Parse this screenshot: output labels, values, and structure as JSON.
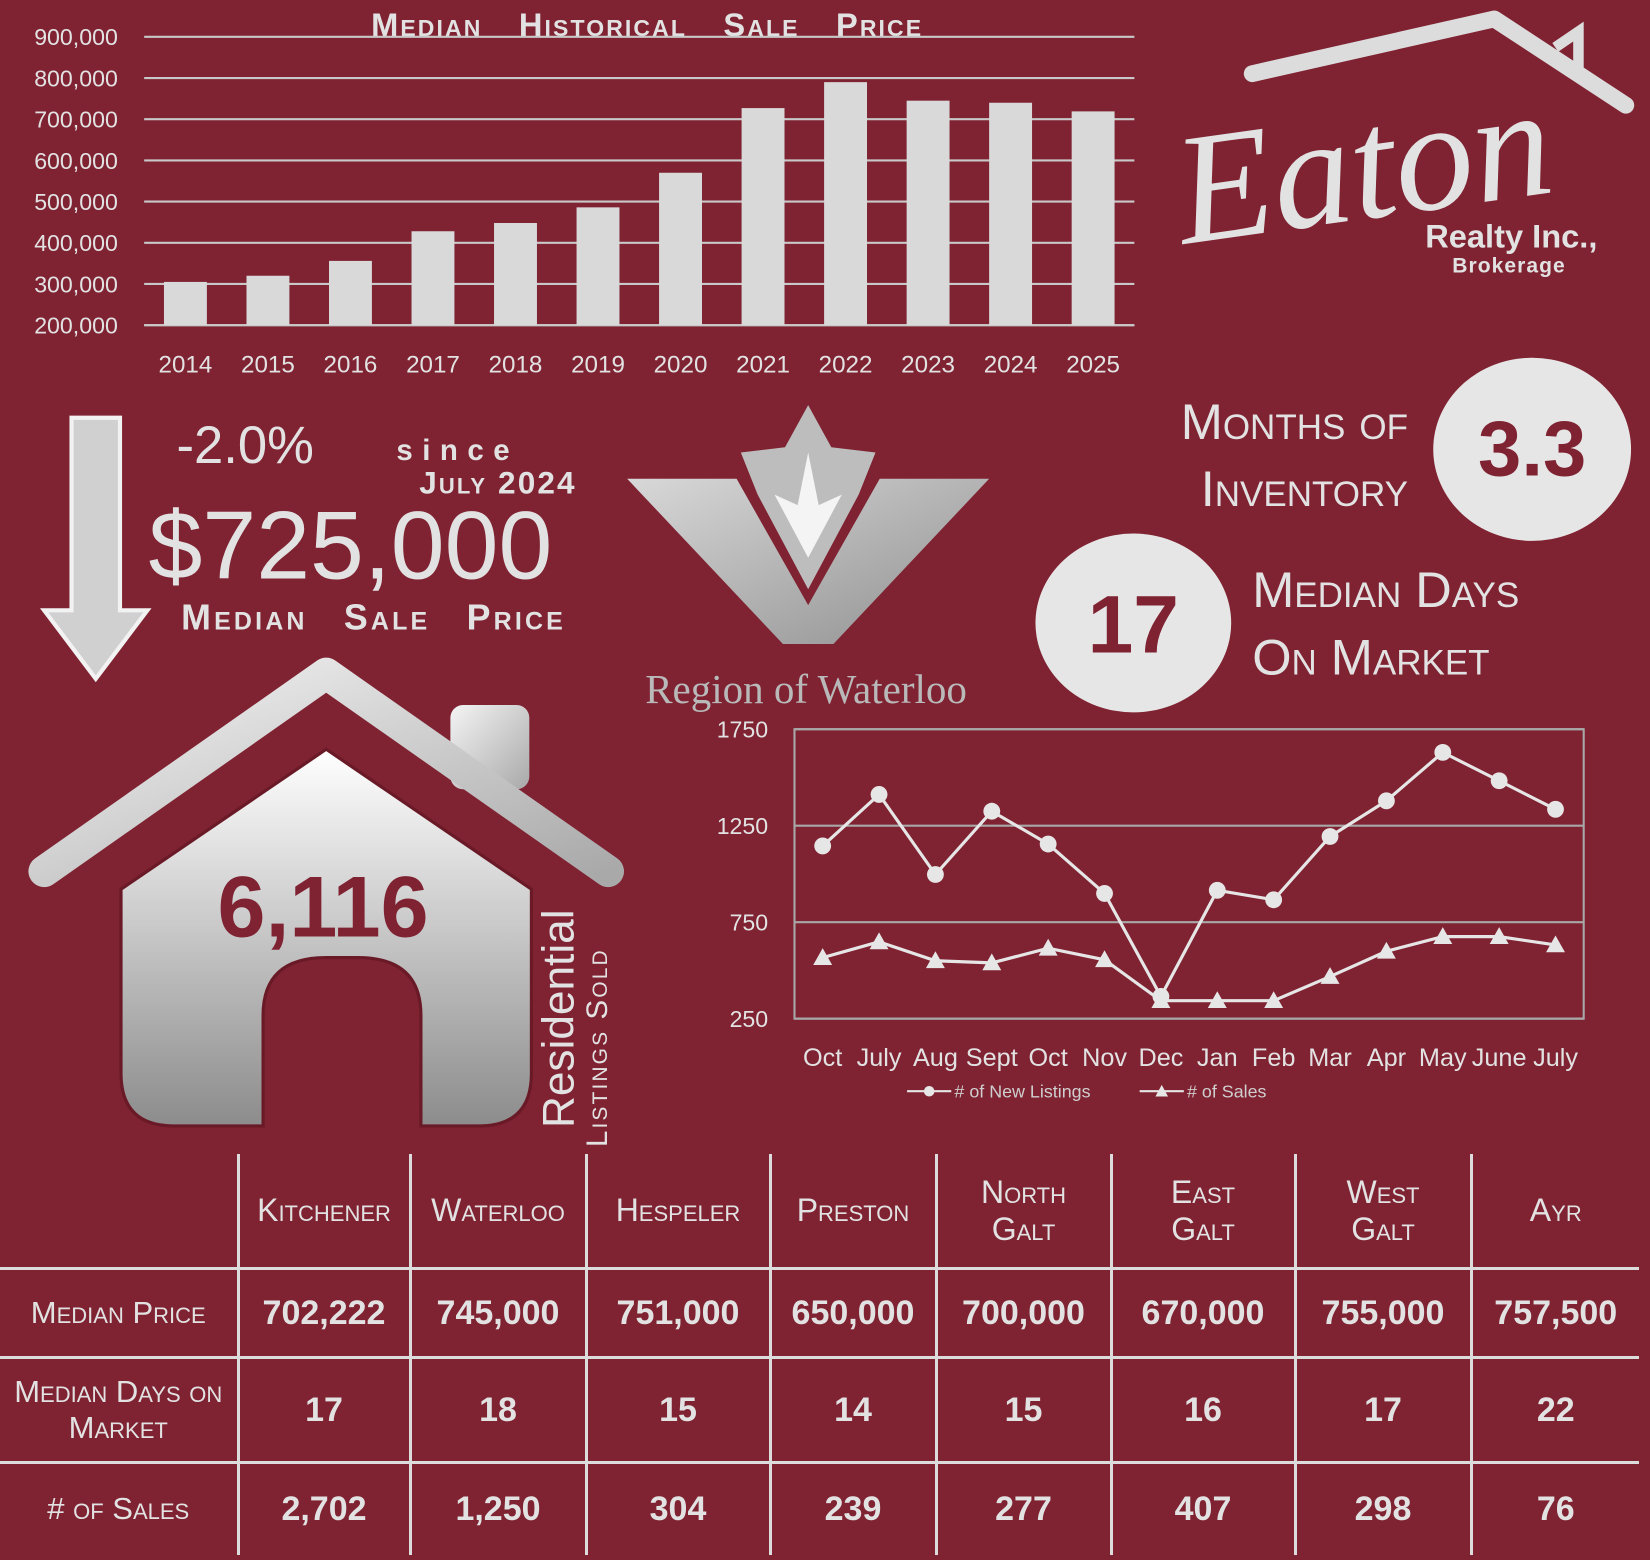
{
  "chart_data": [
    {
      "type": "bar",
      "title": "Median Historical Sale Price",
      "color": "#d9d9d9",
      "grid": true,
      "categories": [
        "2014",
        "2015",
        "2016",
        "2017",
        "2018",
        "2019",
        "2020",
        "2021",
        "2022",
        "2023",
        "2024",
        "2025"
      ],
      "values": [
        305000,
        320000,
        356000,
        428000,
        448000,
        486000,
        570000,
        727000,
        790000,
        745000,
        740000,
        719000
      ],
      "ylim": [
        200000,
        900000
      ],
      "yticks": [
        {
          "value": 200000,
          "label": "200,000"
        },
        {
          "value": 300000,
          "label": "300,000"
        },
        {
          "value": 400000,
          "label": "400,000"
        },
        {
          "value": 500000,
          "label": "500,000"
        },
        {
          "value": 600000,
          "label": "600,000"
        },
        {
          "value": 700000,
          "label": "700,000"
        },
        {
          "value": 800000,
          "label": "800,000"
        },
        {
          "value": 900000,
          "label": "900,000"
        }
      ]
    },
    {
      "type": "line",
      "grid": true,
      "legend": "bottom",
      "categories": [
        "Oct",
        "July",
        "Aug",
        "Sept",
        "Oct",
        "Nov",
        "Dec",
        "Jan",
        "Feb",
        "Mar",
        "Apr",
        "May",
        "June",
        "July"
      ],
      "series": [
        {
          "name": "# of New Listings",
          "color": "#e6e6e6",
          "marker": "circle",
          "values": [
            1145,
            1412,
            997,
            1325,
            1155,
            899,
            365,
            915,
            866,
            1194,
            1379,
            1630,
            1483,
            1335
          ]
        },
        {
          "name": "# of Sales",
          "color": "#e6e6e6",
          "marker": "triangle",
          "values": [
            566,
            648,
            550,
            539,
            615,
            555,
            343,
            343,
            343,
            468,
            599,
            675,
            675,
            632
          ]
        }
      ],
      "ylim": [
        250,
        1750
      ],
      "yticks": [
        250,
        750,
        1250,
        1750
      ]
    }
  ],
  "logo": {
    "name": "Eaton",
    "line1": "Realty Inc.,",
    "line2": "Brokerage"
  },
  "region": "Region of Waterloo",
  "summary": {
    "change": "-2.0%",
    "since": "since",
    "since_date": "July 2024",
    "price": "$725,000",
    "price_label": "Median Sale Price",
    "inventory_value": "3.3",
    "inventory_label": [
      "Months of",
      "Inventory"
    ],
    "days_value": "17",
    "days_label": [
      "Median Days",
      "On Market"
    ],
    "sold_value": "6,116",
    "sold_label1": "Residential",
    "sold_label2": "Listings Sold"
  },
  "table": {
    "columns": [
      "Kitchener",
      "Waterloo",
      "Hespeler",
      "Preston",
      "North Galt",
      "East Galt",
      "West Galt",
      "Ayr"
    ],
    "rows": [
      {
        "label": "Median Price",
        "values": [
          "702,222",
          "745,000",
          "751,000",
          "650,000",
          "700,000",
          "670,000",
          "755,000",
          "757,500"
        ]
      },
      {
        "label": "Median Days on Market",
        "values": [
          "17",
          "18",
          "15",
          "14",
          "15",
          "16",
          "17",
          "22"
        ]
      },
      {
        "label": "# of Sales",
        "values": [
          "2,702",
          "1,250",
          "304",
          "239",
          "277",
          "407",
          "298",
          "76"
        ]
      }
    ]
  }
}
